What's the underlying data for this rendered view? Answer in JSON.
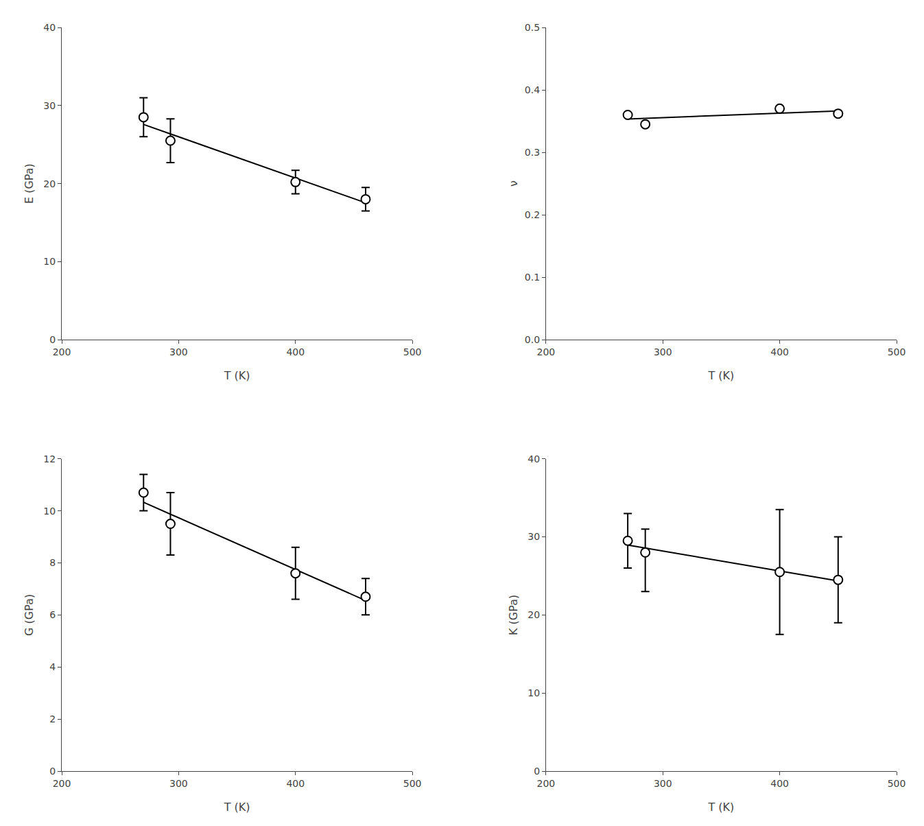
{
  "chart_data": [
    {
      "type": "scatter",
      "xlabel": "T (K)",
      "ylabel": "E (GPa)",
      "xlim": [
        200,
        500
      ],
      "xticks": [
        200,
        300,
        400,
        500
      ],
      "ylim": [
        0,
        40
      ],
      "yticks": [
        0,
        10,
        20,
        30,
        40
      ],
      "grid": false,
      "series": [
        {
          "type": "line",
          "x": [
            270,
            460
          ],
          "values": [
            27.5786,
            17.5444
          ],
          "color": "black",
          "line_style": "solid"
        },
        {
          "type": "scatter",
          "x": [
            270,
            293,
            400,
            460
          ],
          "values": [
            28.5,
            25.5,
            20.2,
            18.0
          ],
          "error_lo": [
            2.5,
            2.8,
            1.5,
            1.5
          ],
          "error_hi": [
            2.5,
            2.8,
            1.5,
            1.5
          ],
          "color": "black",
          "marker": "circle"
        }
      ]
    },
    {
      "type": "scatter",
      "xlabel": "T (K)",
      "ylabel": "ν",
      "xlim": [
        200,
        500
      ],
      "xticks": [
        200,
        300,
        400,
        500
      ],
      "ylim": [
        0,
        0.5
      ],
      "yticks": [
        {
          "value": 0,
          "label": "0.0"
        },
        0.1,
        0.2,
        0.3,
        0.4,
        0.5
      ],
      "grid": false,
      "series": [
        {
          "type": "line",
          "x": [
            270,
            450
          ],
          "values": [
            0.35335,
            0.36642
          ],
          "color": "black",
          "line_style": "solid"
        },
        {
          "type": "scatter",
          "x": [
            270,
            285,
            400,
            450
          ],
          "values": [
            0.36,
            0.345,
            0.37,
            0.362
          ],
          "color": "black",
          "marker": "circle"
        }
      ]
    },
    {
      "type": "scatter",
      "xlabel": "T (K)",
      "ylabel": "G (GPa)",
      "xlim": [
        200,
        500
      ],
      "xticks": [
        200,
        300,
        400,
        500
      ],
      "ylim": [
        0,
        12
      ],
      "yticks": [
        0,
        2,
        4,
        6,
        8,
        10,
        12
      ],
      "grid": false,
      "series": [
        {
          "type": "line",
          "x": [
            270,
            460
          ],
          "values": [
            10.3277,
            6.555
          ],
          "color": "black",
          "line_style": "solid"
        },
        {
          "type": "scatter",
          "x": [
            270,
            293,
            400,
            460
          ],
          "values": [
            10.7,
            9.5,
            7.6,
            6.7
          ],
          "error_lo": [
            0.7,
            1.2,
            1.0,
            0.7
          ],
          "error_hi": [
            0.7,
            1.2,
            1.0,
            0.7
          ],
          "color": "black",
          "marker": "circle"
        }
      ]
    },
    {
      "type": "scatter",
      "xlabel": "T (K)",
      "ylabel": "K (GPa)",
      "xlim": [
        200,
        500
      ],
      "xticks": [
        200,
        300,
        400,
        500
      ],
      "ylim": [
        0,
        40
      ],
      "yticks": [
        0,
        10,
        20,
        30,
        40
      ],
      "grid": false,
      "series": [
        {
          "type": "line",
          "x": [
            270,
            450
          ],
          "values": [
            28.9463,
            24.3575
          ],
          "color": "black",
          "line_style": "solid"
        },
        {
          "type": "scatter",
          "x": [
            270,
            285,
            400,
            450
          ],
          "values": [
            29.5,
            28.0,
            25.5,
            24.5
          ],
          "error_lo": [
            3.5,
            5.0,
            8.0,
            5.5
          ],
          "error_hi": [
            3.5,
            3.0,
            8.0,
            5.5
          ],
          "color": "black",
          "marker": "circle"
        }
      ]
    }
  ]
}
